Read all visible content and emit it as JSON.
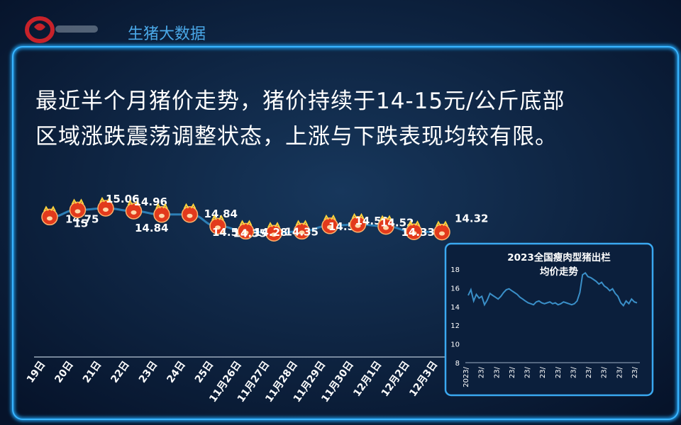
{
  "brand": {
    "title": "生猪大数据"
  },
  "headline": {
    "line1": "最近半个月猪价走势，猪价持续于14-15元/公斤底部",
    "line2": "区域涨跌震荡调整状态，上涨与下跌表现均较有限。"
  },
  "colors": {
    "background": "#0a1a33",
    "frame": "#1f8fd8",
    "line": "#2d7fb6",
    "label": "#ffffff",
    "marker": "#e23a1c"
  },
  "chart_data": [
    {
      "type": "line",
      "title": "",
      "categories": [
        "",
        "",
        "",
        "",
        "",
        "",
        "11月25日",
        "11月26日",
        "11月27日",
        "11月28日",
        "11月29日",
        "11月30日",
        "12月1日",
        "12月2日",
        "12月3日"
      ],
      "category_ticks": [
        "19日",
        "20日",
        "21日",
        "22日",
        "23日",
        "24日",
        "25日",
        "11月26日",
        "11月27日",
        "11月28日",
        "11月29日",
        "11月30日",
        "12月1日",
        "12月2日",
        "12月3日"
      ],
      "values": [
        14.75,
        15,
        15.06,
        14.96,
        14.84,
        14.84,
        14.53,
        14.35,
        14.28,
        14.35,
        14.54,
        14.59,
        14.52,
        14.33,
        14.32
      ],
      "data_labels": [
        "14.75",
        "15",
        "15.06",
        "14.96",
        "14.84",
        "14.84",
        "14.53",
        "14.35",
        "14.28",
        "14.35",
        "14.54",
        "14.59",
        "14.52",
        "14.33",
        "14.32"
      ],
      "ylim": [
        13.6,
        15.4
      ],
      "xlabel": "",
      "ylabel": "",
      "grid": false
    },
    {
      "type": "line",
      "title": "2023全国瘦肉型猪出栏均价走势",
      "yticks": [
        "8",
        "10",
        "12",
        "14",
        "16",
        "18"
      ],
      "ylim": [
        8,
        18.5
      ],
      "xticks": [
        "2023/",
        "23/",
        "23/",
        "23/",
        "23/",
        "23/",
        "23/",
        "23/",
        "23/",
        "23/",
        "23/",
        "23/"
      ],
      "values": [
        15.2,
        15.8,
        14.6,
        15.3,
        14.9,
        15.1,
        14.2,
        14.7,
        15.4,
        15.2,
        15.0,
        14.8,
        15.1,
        15.5,
        15.8,
        15.9,
        15.7,
        15.5,
        15.3,
        15.0,
        14.8,
        14.6,
        14.4,
        14.3,
        14.2,
        14.5,
        14.6,
        14.4,
        14.3,
        14.4,
        14.5,
        14.3,
        14.4,
        14.2,
        14.3,
        14.5,
        14.4,
        14.3,
        14.2,
        14.3,
        14.6,
        15.5,
        17.4,
        17.6,
        17.2,
        17.1,
        16.9,
        16.7,
        16.4,
        16.6,
        16.2,
        16.0,
        15.7,
        15.9,
        15.4,
        15.1,
        14.4,
        14.1,
        14.6,
        14.3,
        14.8,
        14.5,
        14.4
      ],
      "xlabel": "",
      "ylabel": "",
      "grid": false
    }
  ]
}
